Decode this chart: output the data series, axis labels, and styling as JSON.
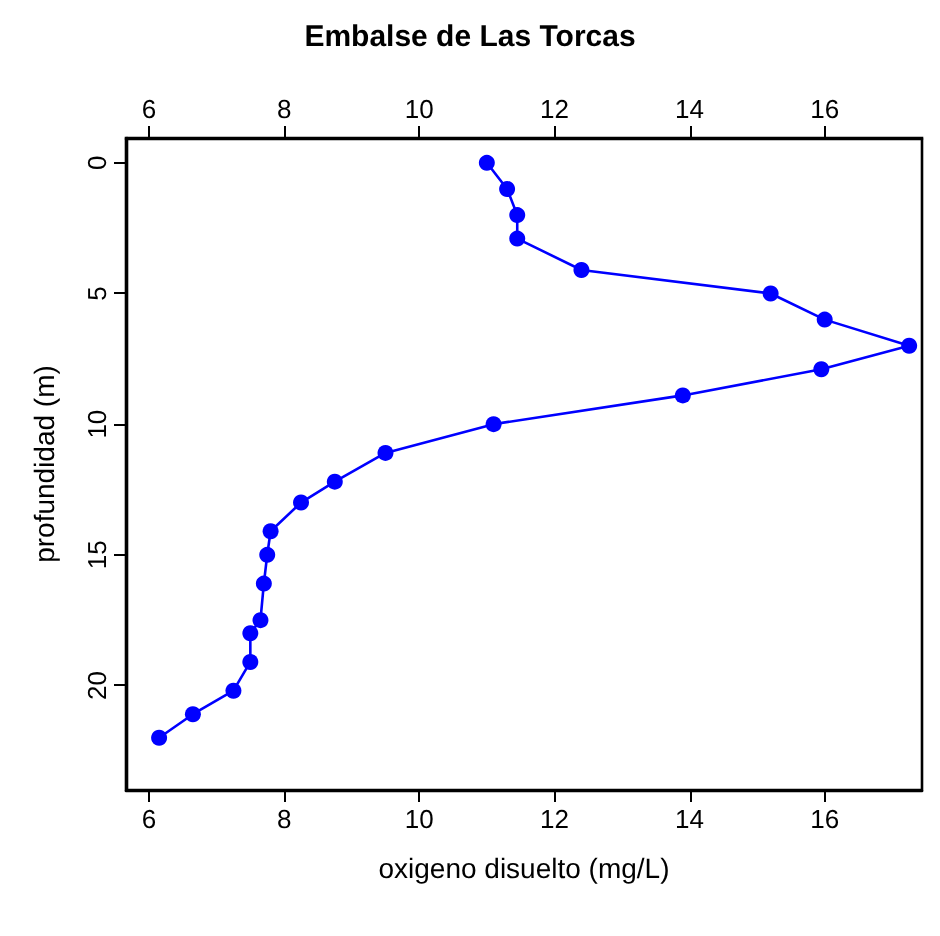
{
  "chart_data": {
    "type": "line",
    "title": "Embalse de Las Torcas",
    "xlabel": "oxigeno disuelto (mg/L)",
    "ylabel": "profundidad (m)",
    "x": [
      11.0,
      11.3,
      11.45,
      11.45,
      12.4,
      15.2,
      16.0,
      17.25,
      15.95,
      13.9,
      11.1,
      9.5,
      8.75,
      8.25,
      7.8,
      7.75,
      7.7,
      7.65,
      7.5,
      7.5,
      7.25,
      6.65,
      6.15
    ],
    "values": [
      0,
      1,
      2,
      2.9,
      4.1,
      5,
      6,
      7,
      7.9,
      8.9,
      10,
      11.1,
      12.2,
      13,
      14.1,
      15,
      16.1,
      17.5,
      18,
      19.1,
      20.2,
      21.1,
      22
    ],
    "color": "#0000ff",
    "marker": "circle",
    "line_style": "solid",
    "grid": false,
    "xlim": [
      5.66,
      17.44
    ],
    "xticks": [
      6,
      8,
      10,
      12,
      14,
      16
    ],
    "x2lim": [
      5.66,
      17.44
    ],
    "x2ticks": [
      6,
      8,
      10,
      12,
      14,
      16
    ],
    "ylim": [
      24,
      -0.95
    ],
    "yticks": [
      0,
      5,
      10,
      15,
      20
    ]
  }
}
